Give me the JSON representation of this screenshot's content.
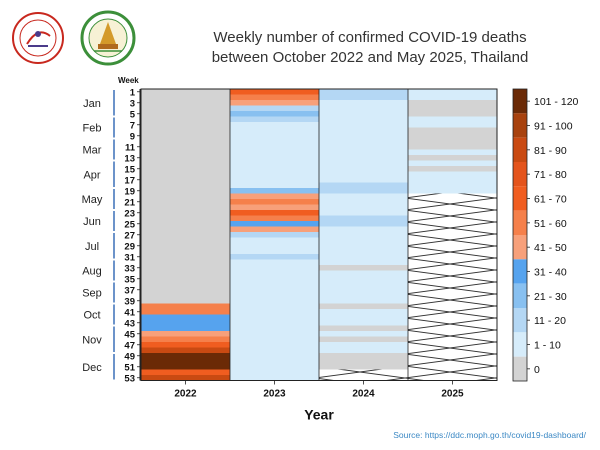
{
  "logos": [
    {
      "name": "emblem-logo",
      "text": ""
    },
    {
      "name": "seal-logo",
      "text": ""
    }
  ],
  "title": {
    "line1": "Weekly number of confirmed COVID-19 deaths",
    "line2": "between October 2022 and May 2025, Thailand"
  },
  "source": "Source: https://ddc.moph.go.th/covid19-dashboard/",
  "colors": {
    "nodata": "#d3d3d3",
    "bin_0": "#d3d3d3",
    "bin_1_10": "#d6ecfa",
    "bin_11_20": "#b4d7f4",
    "bin_21_30": "#88c0f0",
    "bin_31_40": "#56a3ee",
    "bin_41_50": "#f7a07a",
    "bin_51_60": "#f5804b",
    "bin_61_70": "#f05d20",
    "bin_71_80": "#e4541c",
    "bin_81_90": "#c94a12",
    "bin_91_100": "#a8420e",
    "bin_101_120": "#6b2a06"
  },
  "chart_data": {
    "type": "heatmap",
    "title": "Weekly number of confirmed COVID-19 deaths between October 2022 and May 2025, Thailand",
    "xlabel": "Year",
    "ylabel": "Week",
    "x_categories": [
      "2022",
      "2023",
      "2024",
      "2025"
    ],
    "week_ticks": [
      1,
      3,
      5,
      7,
      9,
      11,
      13,
      15,
      17,
      19,
      21,
      23,
      25,
      27,
      29,
      31,
      33,
      35,
      37,
      39,
      41,
      43,
      45,
      47,
      49,
      51,
      53
    ],
    "months": [
      {
        "label": "Jan",
        "start": 1,
        "end": 5
      },
      {
        "label": "Feb",
        "start": 6,
        "end": 9
      },
      {
        "label": "Mar",
        "start": 10,
        "end": 13
      },
      {
        "label": "Apr",
        "start": 14,
        "end": 18
      },
      {
        "label": "May",
        "start": 19,
        "end": 22
      },
      {
        "label": "Jun",
        "start": 23,
        "end": 26
      },
      {
        "label": "Jul",
        "start": 27,
        "end": 31
      },
      {
        "label": "Aug",
        "start": 32,
        "end": 35
      },
      {
        "label": "Sep",
        "start": 36,
        "end": 39
      },
      {
        "label": "Oct",
        "start": 40,
        "end": 43
      },
      {
        "label": "Nov",
        "start": 44,
        "end": 48
      },
      {
        "label": "Dec",
        "start": 49,
        "end": 53
      }
    ],
    "legend": [
      {
        "label": "0",
        "color_key": "bin_0"
      },
      {
        "label": "1 - 10",
        "color_key": "bin_1_10"
      },
      {
        "label": "11 - 20",
        "color_key": "bin_11_20"
      },
      {
        "label": "21 - 30",
        "color_key": "bin_21_30"
      },
      {
        "label": "31 - 40",
        "color_key": "bin_31_40"
      },
      {
        "label": "41 - 50",
        "color_key": "bin_41_50"
      },
      {
        "label": "51 - 60",
        "color_key": "bin_51_60"
      },
      {
        "label": "61 - 70",
        "color_key": "bin_61_70"
      },
      {
        "label": "71 - 80",
        "color_key": "bin_71_80"
      },
      {
        "label": "81 - 90",
        "color_key": "bin_81_90"
      },
      {
        "label": "91 - 100",
        "color_key": "bin_91_100"
      },
      {
        "label": "101 - 120",
        "color_key": "bin_101_120"
      }
    ],
    "series": [
      {
        "year": "2022",
        "cells": [
          {
            "from": 1,
            "to": 39,
            "value": "nodata"
          },
          {
            "from": 40,
            "to": 41,
            "value": "51 - 60"
          },
          {
            "from": 42,
            "to": 42,
            "value": "31 - 40"
          },
          {
            "from": 43,
            "to": 44,
            "value": "31 - 40"
          },
          {
            "from": 45,
            "to": 45,
            "value": "41 - 50"
          },
          {
            "from": 46,
            "to": 46,
            "value": "51 - 60"
          },
          {
            "from": 47,
            "to": 47,
            "value": "61 - 70"
          },
          {
            "from": 48,
            "to": 48,
            "value": "81 - 90"
          },
          {
            "from": 49,
            "to": 51,
            "value": "101 - 120"
          },
          {
            "from": 52,
            "to": 52,
            "value": "61 - 70"
          },
          {
            "from": 53,
            "to": 53,
            "value": "81 - 90"
          }
        ]
      },
      {
        "year": "2023",
        "cells": [
          {
            "from": 1,
            "to": 1,
            "value": "61 - 70"
          },
          {
            "from": 2,
            "to": 2,
            "value": "51 - 60"
          },
          {
            "from": 3,
            "to": 3,
            "value": "41 - 50"
          },
          {
            "from": 4,
            "to": 4,
            "value": "11 - 20"
          },
          {
            "from": 5,
            "to": 5,
            "value": "21 - 30"
          },
          {
            "from": 6,
            "to": 6,
            "value": "11 - 20"
          },
          {
            "from": 7,
            "to": 18,
            "value": "1 - 10"
          },
          {
            "from": 19,
            "to": 19,
            "value": "21 - 30"
          },
          {
            "from": 20,
            "to": 20,
            "value": "41 - 50"
          },
          {
            "from": 21,
            "to": 21,
            "value": "51 - 60"
          },
          {
            "from": 22,
            "to": 22,
            "value": "41 - 50"
          },
          {
            "from": 23,
            "to": 23,
            "value": "61 - 70"
          },
          {
            "from": 24,
            "to": 24,
            "value": "51 - 60"
          },
          {
            "from": 25,
            "to": 25,
            "value": "31 - 40"
          },
          {
            "from": 26,
            "to": 26,
            "value": "41 - 50"
          },
          {
            "from": 27,
            "to": 27,
            "value": "11 - 20"
          },
          {
            "from": 28,
            "to": 30,
            "value": "1 - 10"
          },
          {
            "from": 31,
            "to": 31,
            "value": "11 - 20"
          },
          {
            "from": 32,
            "to": 53,
            "value": "1 - 10"
          }
        ]
      },
      {
        "year": "2024",
        "cells": [
          {
            "from": 1,
            "to": 2,
            "value": "11 - 20"
          },
          {
            "from": 3,
            "to": 17,
            "value": "1 - 10"
          },
          {
            "from": 18,
            "to": 19,
            "value": "11 - 20"
          },
          {
            "from": 20,
            "to": 23,
            "value": "1 - 10"
          },
          {
            "from": 24,
            "to": 25,
            "value": "11 - 20"
          },
          {
            "from": 26,
            "to": 32,
            "value": "1 - 10"
          },
          {
            "from": 33,
            "to": 33,
            "value": "0"
          },
          {
            "from": 34,
            "to": 39,
            "value": "1 - 10"
          },
          {
            "from": 40,
            "to": 40,
            "value": "0"
          },
          {
            "from": 41,
            "to": 43,
            "value": "1 - 10"
          },
          {
            "from": 44,
            "to": 44,
            "value": "0"
          },
          {
            "from": 45,
            "to": 45,
            "value": "1 - 10"
          },
          {
            "from": 46,
            "to": 46,
            "value": "0"
          },
          {
            "from": 47,
            "to": 48,
            "value": "1 - 10"
          },
          {
            "from": 49,
            "to": 51,
            "value": "0"
          },
          {
            "from": 52,
            "to": 53,
            "value": "nodata"
          }
        ]
      },
      {
        "year": "2025",
        "cells": [
          {
            "from": 1,
            "to": 2,
            "value": "1 - 10"
          },
          {
            "from": 3,
            "to": 5,
            "value": "0"
          },
          {
            "from": 6,
            "to": 7,
            "value": "1 - 10"
          },
          {
            "from": 8,
            "to": 11,
            "value": "0"
          },
          {
            "from": 12,
            "to": 12,
            "value": "1 - 10"
          },
          {
            "from": 13,
            "to": 13,
            "value": "0"
          },
          {
            "from": 14,
            "to": 14,
            "value": "1 - 10"
          },
          {
            "from": 15,
            "to": 15,
            "value": "0"
          },
          {
            "from": 16,
            "to": 19,
            "value": "1 - 10"
          },
          {
            "from": 20,
            "to": 53,
            "value": "nodata"
          }
        ]
      }
    ]
  }
}
